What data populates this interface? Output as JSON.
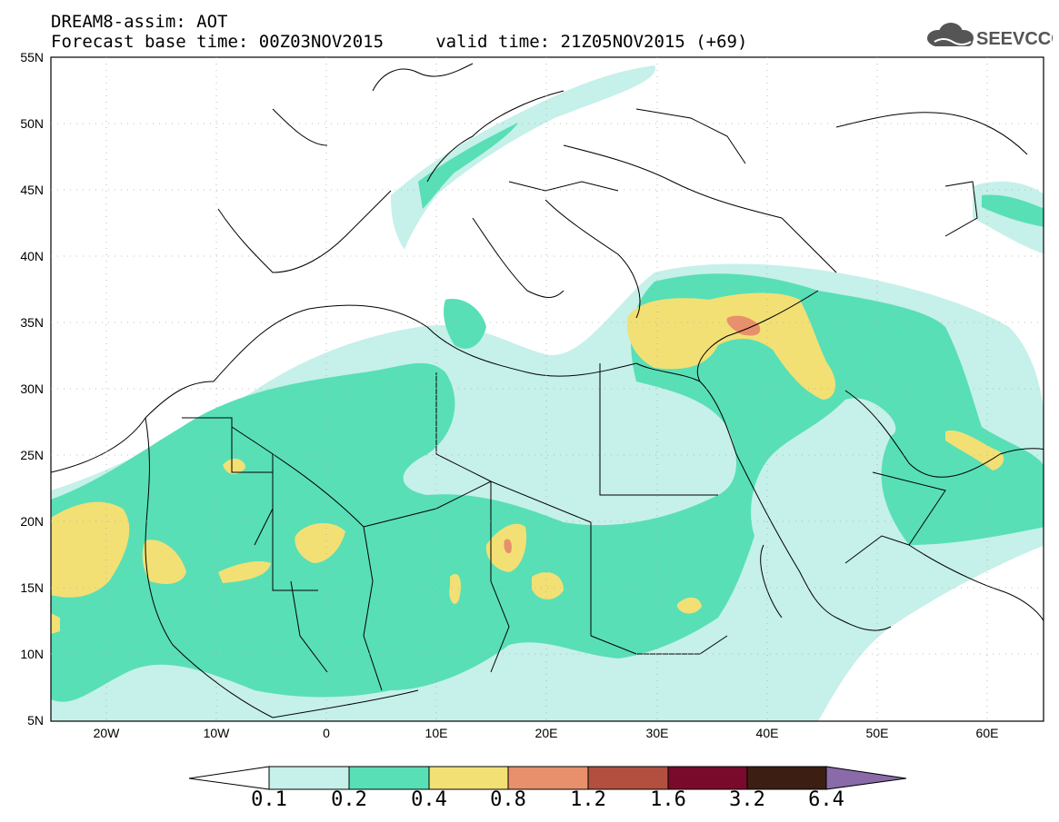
{
  "header": {
    "title": "DREAM8-assim: AOT",
    "subtitle": "Forecast base time: 00Z03NOV2015     valid time: 21Z05NOV2015 (+69)",
    "logo_text": "SEEVCCC"
  },
  "axes": {
    "lat_labels": [
      "55N",
      "50N",
      "45N",
      "40N",
      "35N",
      "30N",
      "25N",
      "20N",
      "15N",
      "10N",
      "5N"
    ],
    "lon_labels": [
      "20W",
      "10W",
      "0",
      "10E",
      "20E",
      "30E",
      "40E",
      "50E",
      "60E"
    ]
  },
  "colorbar": {
    "labels": [
      "0.1",
      "0.2",
      "0.4",
      "0.8",
      "1.2",
      "1.6",
      "3.2",
      "6.4"
    ],
    "colors": [
      "#c6f0ea",
      "#58dfb6",
      "#f2e075",
      "#e88f6c",
      "#b24f3e",
      "#7a0a2c",
      "#3c1f12",
      "#8a6aa8"
    ],
    "under_color": "#ffffff"
  },
  "colors": {
    "very_light": "#c6f0ea",
    "light": "#58dfb6",
    "yellow": "#f2e075",
    "orange": "#e88f6c"
  }
}
